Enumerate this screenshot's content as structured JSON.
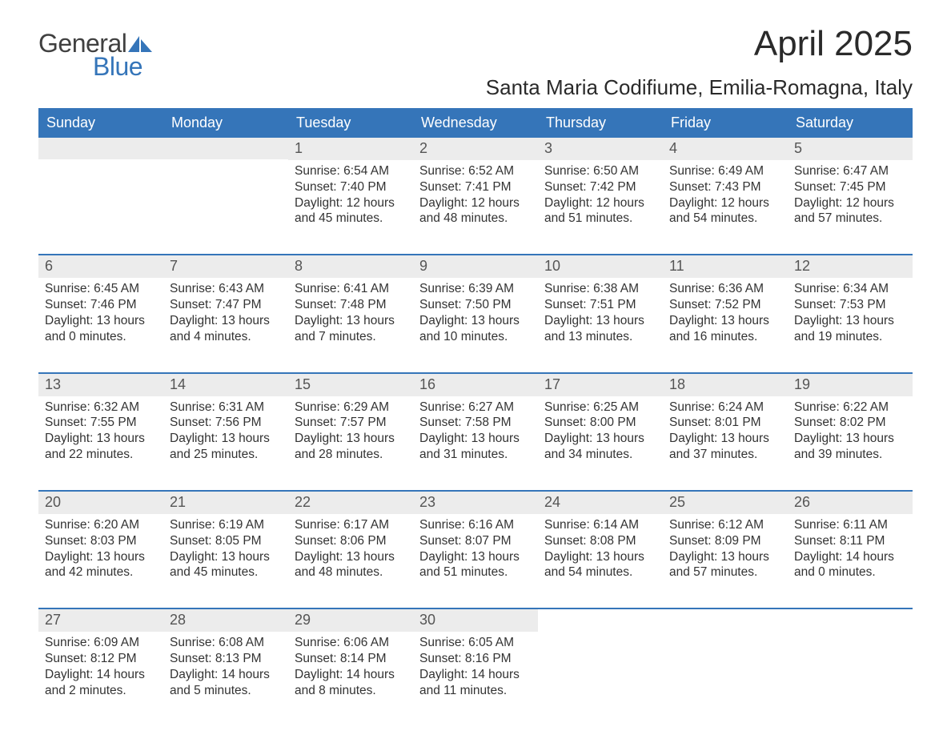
{
  "logo": {
    "word1": "General",
    "word2": "Blue",
    "color_gray": "#404040",
    "color_blue": "#3575b9"
  },
  "title": "April 2025",
  "location": "Santa Maria Codifiume, Emilia-Romagna, Italy",
  "header_bg": "#3575b9",
  "header_text_color": "#ffffff",
  "daynum_bg": "#ececec",
  "border_color": "#3575b9",
  "text_color": "#333333",
  "day_names": [
    "Sunday",
    "Monday",
    "Tuesday",
    "Wednesday",
    "Thursday",
    "Friday",
    "Saturday"
  ],
  "weeks": [
    [
      {
        "day": "",
        "sunrise": "",
        "sunset": "",
        "daylight1": "",
        "daylight2": ""
      },
      {
        "day": "",
        "sunrise": "",
        "sunset": "",
        "daylight1": "",
        "daylight2": ""
      },
      {
        "day": "1",
        "sunrise": "Sunrise: 6:54 AM",
        "sunset": "Sunset: 7:40 PM",
        "daylight1": "Daylight: 12 hours",
        "daylight2": "and 45 minutes."
      },
      {
        "day": "2",
        "sunrise": "Sunrise: 6:52 AM",
        "sunset": "Sunset: 7:41 PM",
        "daylight1": "Daylight: 12 hours",
        "daylight2": "and 48 minutes."
      },
      {
        "day": "3",
        "sunrise": "Sunrise: 6:50 AM",
        "sunset": "Sunset: 7:42 PM",
        "daylight1": "Daylight: 12 hours",
        "daylight2": "and 51 minutes."
      },
      {
        "day": "4",
        "sunrise": "Sunrise: 6:49 AM",
        "sunset": "Sunset: 7:43 PM",
        "daylight1": "Daylight: 12 hours",
        "daylight2": "and 54 minutes."
      },
      {
        "day": "5",
        "sunrise": "Sunrise: 6:47 AM",
        "sunset": "Sunset: 7:45 PM",
        "daylight1": "Daylight: 12 hours",
        "daylight2": "and 57 minutes."
      }
    ],
    [
      {
        "day": "6",
        "sunrise": "Sunrise: 6:45 AM",
        "sunset": "Sunset: 7:46 PM",
        "daylight1": "Daylight: 13 hours",
        "daylight2": "and 0 minutes."
      },
      {
        "day": "7",
        "sunrise": "Sunrise: 6:43 AM",
        "sunset": "Sunset: 7:47 PM",
        "daylight1": "Daylight: 13 hours",
        "daylight2": "and 4 minutes."
      },
      {
        "day": "8",
        "sunrise": "Sunrise: 6:41 AM",
        "sunset": "Sunset: 7:48 PM",
        "daylight1": "Daylight: 13 hours",
        "daylight2": "and 7 minutes."
      },
      {
        "day": "9",
        "sunrise": "Sunrise: 6:39 AM",
        "sunset": "Sunset: 7:50 PM",
        "daylight1": "Daylight: 13 hours",
        "daylight2": "and 10 minutes."
      },
      {
        "day": "10",
        "sunrise": "Sunrise: 6:38 AM",
        "sunset": "Sunset: 7:51 PM",
        "daylight1": "Daylight: 13 hours",
        "daylight2": "and 13 minutes."
      },
      {
        "day": "11",
        "sunrise": "Sunrise: 6:36 AM",
        "sunset": "Sunset: 7:52 PM",
        "daylight1": "Daylight: 13 hours",
        "daylight2": "and 16 minutes."
      },
      {
        "day": "12",
        "sunrise": "Sunrise: 6:34 AM",
        "sunset": "Sunset: 7:53 PM",
        "daylight1": "Daylight: 13 hours",
        "daylight2": "and 19 minutes."
      }
    ],
    [
      {
        "day": "13",
        "sunrise": "Sunrise: 6:32 AM",
        "sunset": "Sunset: 7:55 PM",
        "daylight1": "Daylight: 13 hours",
        "daylight2": "and 22 minutes."
      },
      {
        "day": "14",
        "sunrise": "Sunrise: 6:31 AM",
        "sunset": "Sunset: 7:56 PM",
        "daylight1": "Daylight: 13 hours",
        "daylight2": "and 25 minutes."
      },
      {
        "day": "15",
        "sunrise": "Sunrise: 6:29 AM",
        "sunset": "Sunset: 7:57 PM",
        "daylight1": "Daylight: 13 hours",
        "daylight2": "and 28 minutes."
      },
      {
        "day": "16",
        "sunrise": "Sunrise: 6:27 AM",
        "sunset": "Sunset: 7:58 PM",
        "daylight1": "Daylight: 13 hours",
        "daylight2": "and 31 minutes."
      },
      {
        "day": "17",
        "sunrise": "Sunrise: 6:25 AM",
        "sunset": "Sunset: 8:00 PM",
        "daylight1": "Daylight: 13 hours",
        "daylight2": "and 34 minutes."
      },
      {
        "day": "18",
        "sunrise": "Sunrise: 6:24 AM",
        "sunset": "Sunset: 8:01 PM",
        "daylight1": "Daylight: 13 hours",
        "daylight2": "and 37 minutes."
      },
      {
        "day": "19",
        "sunrise": "Sunrise: 6:22 AM",
        "sunset": "Sunset: 8:02 PM",
        "daylight1": "Daylight: 13 hours",
        "daylight2": "and 39 minutes."
      }
    ],
    [
      {
        "day": "20",
        "sunrise": "Sunrise: 6:20 AM",
        "sunset": "Sunset: 8:03 PM",
        "daylight1": "Daylight: 13 hours",
        "daylight2": "and 42 minutes."
      },
      {
        "day": "21",
        "sunrise": "Sunrise: 6:19 AM",
        "sunset": "Sunset: 8:05 PM",
        "daylight1": "Daylight: 13 hours",
        "daylight2": "and 45 minutes."
      },
      {
        "day": "22",
        "sunrise": "Sunrise: 6:17 AM",
        "sunset": "Sunset: 8:06 PM",
        "daylight1": "Daylight: 13 hours",
        "daylight2": "and 48 minutes."
      },
      {
        "day": "23",
        "sunrise": "Sunrise: 6:16 AM",
        "sunset": "Sunset: 8:07 PM",
        "daylight1": "Daylight: 13 hours",
        "daylight2": "and 51 minutes."
      },
      {
        "day": "24",
        "sunrise": "Sunrise: 6:14 AM",
        "sunset": "Sunset: 8:08 PM",
        "daylight1": "Daylight: 13 hours",
        "daylight2": "and 54 minutes."
      },
      {
        "day": "25",
        "sunrise": "Sunrise: 6:12 AM",
        "sunset": "Sunset: 8:09 PM",
        "daylight1": "Daylight: 13 hours",
        "daylight2": "and 57 minutes."
      },
      {
        "day": "26",
        "sunrise": "Sunrise: 6:11 AM",
        "sunset": "Sunset: 8:11 PM",
        "daylight1": "Daylight: 14 hours",
        "daylight2": "and 0 minutes."
      }
    ],
    [
      {
        "day": "27",
        "sunrise": "Sunrise: 6:09 AM",
        "sunset": "Sunset: 8:12 PM",
        "daylight1": "Daylight: 14 hours",
        "daylight2": "and 2 minutes."
      },
      {
        "day": "28",
        "sunrise": "Sunrise: 6:08 AM",
        "sunset": "Sunset: 8:13 PM",
        "daylight1": "Daylight: 14 hours",
        "daylight2": "and 5 minutes."
      },
      {
        "day": "29",
        "sunrise": "Sunrise: 6:06 AM",
        "sunset": "Sunset: 8:14 PM",
        "daylight1": "Daylight: 14 hours",
        "daylight2": "and 8 minutes."
      },
      {
        "day": "30",
        "sunrise": "Sunrise: 6:05 AM",
        "sunset": "Sunset: 8:16 PM",
        "daylight1": "Daylight: 14 hours",
        "daylight2": "and 11 minutes."
      },
      {
        "day": "",
        "sunrise": "",
        "sunset": "",
        "daylight1": "",
        "daylight2": ""
      },
      {
        "day": "",
        "sunrise": "",
        "sunset": "",
        "daylight1": "",
        "daylight2": ""
      },
      {
        "day": "",
        "sunrise": "",
        "sunset": "",
        "daylight1": "",
        "daylight2": ""
      }
    ]
  ]
}
